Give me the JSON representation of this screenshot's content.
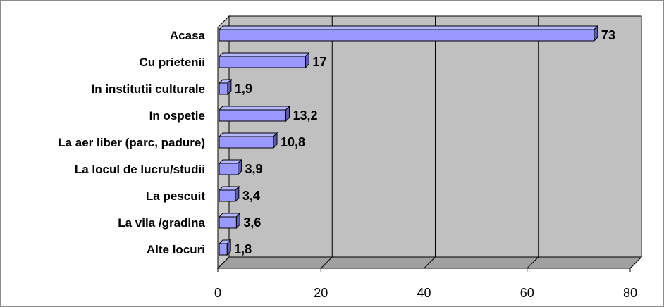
{
  "chart_data": {
    "type": "bar",
    "orientation": "horizontal",
    "three_d": true,
    "categories": [
      "Acasa",
      "Cu prietenii",
      "In institutii culturale",
      "In ospetie",
      "La aer liber (parc, padure)",
      "La locul de lucru/studii",
      "La pescuit",
      "La vila /gradina",
      "Alte locuri"
    ],
    "values": [
      73,
      17,
      1.9,
      13.2,
      10.8,
      3.9,
      3.4,
      3.6,
      1.8
    ],
    "value_labels": [
      "73",
      "17",
      "1,9",
      "13,2",
      "10,8",
      "3,9",
      "3,4",
      "3,6",
      "1,8"
    ],
    "xlim": [
      0,
      80
    ],
    "xticks": [
      "0",
      "20",
      "40",
      "60",
      "80"
    ],
    "grid": true,
    "legend": "none",
    "colors": {
      "bar_front": "#9999ff",
      "bar_top": "#b8b8ff",
      "bar_side": "#5c5cb0",
      "back_wall": "#c0c0c0",
      "floor": "#a0a0a0",
      "side_wall": "#c8c8c8"
    }
  }
}
